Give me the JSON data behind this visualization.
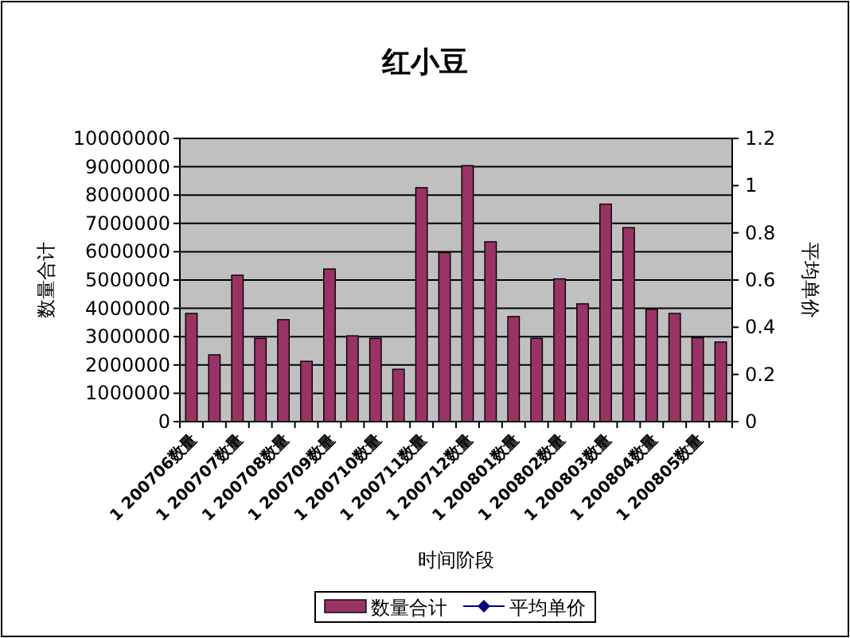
{
  "chart_data": {
    "type": "bar",
    "title": "红小豆",
    "xlabel": "时间阶段",
    "ylabel": "数量合计",
    "y2label": "平均单价",
    "categories": [
      "1 200706数量",
      null,
      "1 200707数量",
      null,
      "1 200708数量",
      null,
      "1 200709数量",
      null,
      "1 200710数量",
      null,
      "1 200711数量",
      null,
      "1 200712数量",
      null,
      "1 200801数量",
      null,
      "1 200802数量",
      null,
      "1 200803数量",
      null,
      "1 200804数量",
      null,
      "1 200805数量",
      null
    ],
    "series": [
      {
        "name": "数量合计",
        "color": "#993366",
        "values": [
          3820000,
          2360000,
          5170000,
          2940000,
          3600000,
          2130000,
          5390000,
          3030000,
          2940000,
          1850000,
          8260000,
          5970000,
          9040000,
          6350000,
          3710000,
          2940000,
          5040000,
          4160000,
          7680000,
          6850000,
          3970000,
          3820000,
          2960000,
          2810000
        ]
      },
      {
        "name": "平均单价",
        "type": "line",
        "color": "#000080",
        "marker": "diamond",
        "values": [
          null,
          null,
          null,
          null,
          null,
          null,
          null,
          null,
          null,
          null,
          null,
          null,
          null,
          null,
          null,
          null,
          null,
          null,
          null,
          null,
          null,
          null,
          null,
          null
        ]
      }
    ],
    "ylim": [
      0,
      10000000
    ],
    "yticks": [
      0,
      1000000,
      2000000,
      3000000,
      4000000,
      5000000,
      6000000,
      7000000,
      8000000,
      9000000,
      10000000
    ],
    "y2lim": [
      0,
      1.2
    ],
    "y2ticks": [
      0,
      0.2,
      0.4,
      0.6,
      0.8,
      1,
      1.2
    ],
    "grid": "y",
    "legend": "bottom"
  }
}
